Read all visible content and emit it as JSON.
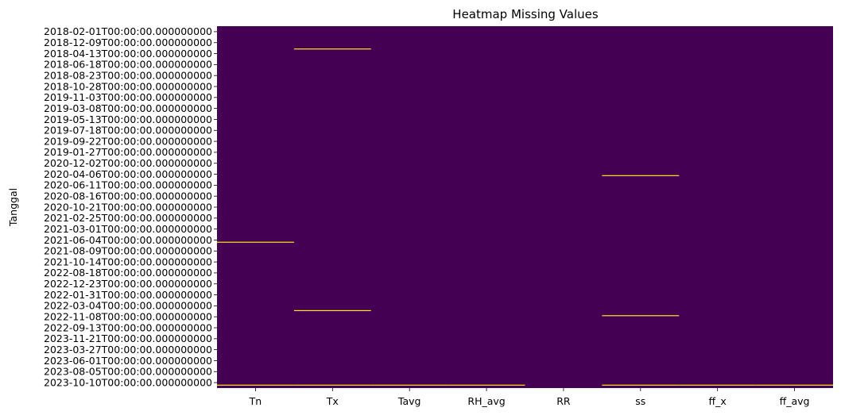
{
  "chart_data": {
    "type": "heatmap",
    "title": "Heatmap Missing Values",
    "xlabel": "",
    "ylabel": "Tanggal",
    "columns": [
      "Tn",
      "Tx",
      "Tavg",
      "RH_avg",
      "RR",
      "ss",
      "ff_x",
      "ff_avg"
    ],
    "row_tick_labels": [
      "2018-02-01T00:00:00.000000000",
      "2018-12-09T00:00:00.000000000",
      "2018-04-13T00:00:00.000000000",
      "2018-06-18T00:00:00.000000000",
      "2018-08-23T00:00:00.000000000",
      "2018-10-28T00:00:00.000000000",
      "2019-11-03T00:00:00.000000000",
      "2019-03-08T00:00:00.000000000",
      "2019-05-13T00:00:00.000000000",
      "2019-07-18T00:00:00.000000000",
      "2019-09-22T00:00:00.000000000",
      "2019-01-27T00:00:00.000000000",
      "2020-12-02T00:00:00.000000000",
      "2020-04-06T00:00:00.000000000",
      "2020-06-11T00:00:00.000000000",
      "2020-08-16T00:00:00.000000000",
      "2020-10-21T00:00:00.000000000",
      "2021-02-25T00:00:00.000000000",
      "2021-03-01T00:00:00.000000000",
      "2021-06-04T00:00:00.000000000",
      "2021-08-09T00:00:00.000000000",
      "2021-10-14T00:00:00.000000000",
      "2022-08-18T00:00:00.000000000",
      "2022-12-23T00:00:00.000000000",
      "2022-01-31T00:00:00.000000000",
      "2022-03-04T00:00:00.000000000",
      "2022-11-08T00:00:00.000000000",
      "2022-09-13T00:00:00.000000000",
      "2023-11-21T00:00:00.000000000",
      "2023-03-27T00:00:00.000000000",
      "2023-06-01T00:00:00.000000000",
      "2023-08-05T00:00:00.000000000",
      "2023-10-10T00:00:00.000000000"
    ],
    "missing_value_rows": [
      {
        "column": "Tx",
        "position": 0.063
      },
      {
        "column": "ss",
        "position": 0.413
      },
      {
        "column": "Tn",
        "position": 0.597
      },
      {
        "column": "Tx",
        "position": 0.786
      },
      {
        "column": "ss",
        "position": 0.8
      },
      {
        "column": "Tn",
        "position": 0.992
      },
      {
        "column": "Tx",
        "position": 0.992
      },
      {
        "column": "Tavg",
        "position": 0.992
      },
      {
        "column": "RH_avg",
        "position": 0.992
      },
      {
        "column": "ss",
        "position": 0.992
      },
      {
        "column": "ff_x",
        "position": 0.992
      },
      {
        "column": "ff_avg",
        "position": 0.992
      }
    ],
    "colors": {
      "present": "#440154",
      "missing": "#fde725"
    },
    "colorbar": false,
    "grid": false
  }
}
